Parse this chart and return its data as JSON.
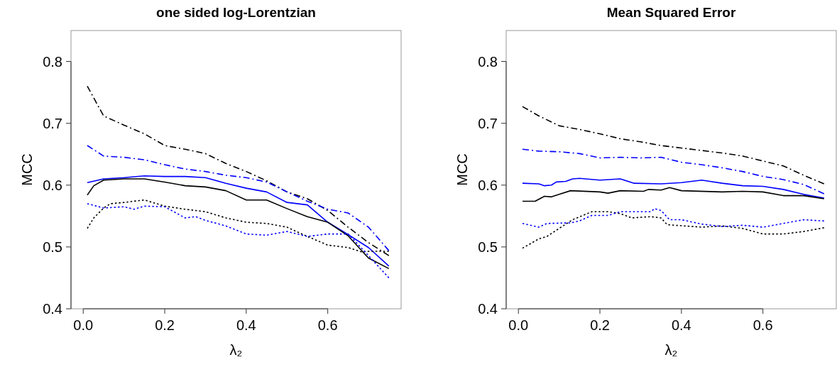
{
  "chart_data": [
    {
      "type": "line",
      "title": "one sided log-Lorentzian",
      "xlabel": "λ₂",
      "ylabel": "MCC",
      "xlim": [
        -0.03,
        0.78
      ],
      "ylim": [
        0.4,
        0.85
      ],
      "xticks": [
        {
          "value": 0,
          "label": "0.0"
        },
        0.2,
        0.4,
        0.6
      ],
      "yticks": [
        0.4,
        0.5,
        0.6,
        0.7,
        0.8
      ],
      "grid": false,
      "series": [
        {
          "color": "#000000",
          "line_style": "dashed",
          "x": [
            0.01,
            0.05,
            0.1,
            0.15,
            0.2,
            0.25,
            0.3,
            0.35,
            0.4,
            0.45,
            0.5,
            0.55,
            0.6,
            0.65,
            0.7,
            0.75
          ],
          "values": [
            0.76,
            0.712,
            0.697,
            0.683,
            0.664,
            0.658,
            0.651,
            0.635,
            0.622,
            0.607,
            0.589,
            0.578,
            0.559,
            0.532,
            0.507,
            0.486
          ]
        },
        {
          "color": "#0000ff",
          "line_style": "dashed",
          "x": [
            0.01,
            0.05,
            0.1,
            0.15,
            0.2,
            0.25,
            0.3,
            0.35,
            0.4,
            0.45,
            0.5,
            0.55,
            0.6,
            0.65,
            0.7,
            0.75
          ],
          "values": [
            0.664,
            0.647,
            0.645,
            0.641,
            0.633,
            0.626,
            0.622,
            0.616,
            0.612,
            0.605,
            0.589,
            0.574,
            0.561,
            0.555,
            0.532,
            0.494
          ]
        },
        {
          "color": "#0000ff",
          "line_style": "solid",
          "x": [
            0.01,
            0.05,
            0.1,
            0.15,
            0.2,
            0.25,
            0.3,
            0.35,
            0.4,
            0.45,
            0.5,
            0.55,
            0.6,
            0.65,
            0.7,
            0.75
          ],
          "values": [
            0.604,
            0.61,
            0.612,
            0.615,
            0.614,
            0.614,
            0.612,
            0.603,
            0.595,
            0.589,
            0.572,
            0.568,
            0.54,
            0.52,
            0.499,
            0.469
          ]
        },
        {
          "color": "#000000",
          "line_style": "solid",
          "x": [
            0.01,
            0.026,
            0.05,
            0.1,
            0.15,
            0.2,
            0.25,
            0.3,
            0.35,
            0.4,
            0.45,
            0.5,
            0.55,
            0.6,
            0.65,
            0.7,
            0.75
          ],
          "values": [
            0.584,
            0.599,
            0.608,
            0.61,
            0.61,
            0.605,
            0.599,
            0.597,
            0.591,
            0.576,
            0.576,
            0.562,
            0.549,
            0.54,
            0.518,
            0.482,
            0.465
          ]
        },
        {
          "color": "#000000",
          "line_style": "dotted",
          "x": [
            0.01,
            0.026,
            0.05,
            0.067,
            0.1,
            0.15,
            0.2,
            0.25,
            0.3,
            0.35,
            0.4,
            0.45,
            0.5,
            0.55,
            0.6,
            0.65,
            0.683,
            0.7,
            0.75
          ],
          "values": [
            0.53,
            0.547,
            0.563,
            0.57,
            0.572,
            0.576,
            0.566,
            0.561,
            0.557,
            0.547,
            0.54,
            0.538,
            0.532,
            0.517,
            0.503,
            0.499,
            0.492,
            0.493,
            0.493
          ]
        },
        {
          "color": "#0000ff",
          "line_style": "dotted",
          "x": [
            0.01,
            0.05,
            0.1,
            0.125,
            0.15,
            0.2,
            0.25,
            0.276,
            0.3,
            0.35,
            0.4,
            0.45,
            0.5,
            0.55,
            0.6,
            0.65,
            0.7,
            0.75
          ],
          "values": [
            0.57,
            0.563,
            0.565,
            0.561,
            0.566,
            0.565,
            0.547,
            0.549,
            0.543,
            0.534,
            0.521,
            0.519,
            0.525,
            0.517,
            0.521,
            0.521,
            0.486,
            0.45
          ]
        }
      ]
    },
    {
      "type": "line",
      "title": "Mean Squared Error",
      "xlabel": "λ₂",
      "ylabel": "MCC",
      "xlim": [
        -0.03,
        0.78
      ],
      "ylim": [
        0.4,
        0.85
      ],
      "xticks": [
        {
          "value": 0,
          "label": "0.0"
        },
        0.2,
        0.4,
        0.6
      ],
      "yticks": [
        0.4,
        0.5,
        0.6,
        0.7,
        0.8
      ],
      "grid": false,
      "series": [
        {
          "color": "#000000",
          "line_style": "dashed",
          "x": [
            0.01,
            0.05,
            0.1,
            0.15,
            0.2,
            0.25,
            0.3,
            0.35,
            0.4,
            0.45,
            0.5,
            0.55,
            0.6,
            0.65,
            0.7,
            0.75
          ],
          "values": [
            0.727,
            0.712,
            0.696,
            0.69,
            0.683,
            0.675,
            0.67,
            0.664,
            0.66,
            0.656,
            0.652,
            0.647,
            0.639,
            0.631,
            0.616,
            0.602
          ]
        },
        {
          "color": "#0000ff",
          "line_style": "dashed",
          "x": [
            0.01,
            0.05,
            0.1,
            0.15,
            0.2,
            0.25,
            0.3,
            0.35,
            0.4,
            0.45,
            0.5,
            0.55,
            0.6,
            0.65,
            0.7,
            0.75
          ],
          "values": [
            0.658,
            0.655,
            0.654,
            0.651,
            0.644,
            0.645,
            0.644,
            0.645,
            0.637,
            0.633,
            0.628,
            0.622,
            0.614,
            0.609,
            0.601,
            0.586
          ]
        },
        {
          "color": "#0000ff",
          "line_style": "solid",
          "x": [
            0.01,
            0.05,
            0.064,
            0.081,
            0.093,
            0.116,
            0.133,
            0.15,
            0.2,
            0.25,
            0.284,
            0.35,
            0.4,
            0.45,
            0.5,
            0.55,
            0.6,
            0.65,
            0.7,
            0.75
          ],
          "values": [
            0.603,
            0.602,
            0.599,
            0.6,
            0.605,
            0.606,
            0.61,
            0.611,
            0.608,
            0.61,
            0.603,
            0.602,
            0.604,
            0.608,
            0.603,
            0.599,
            0.598,
            0.593,
            0.585,
            0.579
          ]
        },
        {
          "color": "#000000",
          "line_style": "solid",
          "x": [
            0.01,
            0.041,
            0.064,
            0.081,
            0.1,
            0.128,
            0.2,
            0.22,
            0.25,
            0.307,
            0.319,
            0.35,
            0.371,
            0.4,
            0.5,
            0.55,
            0.6,
            0.65,
            0.7,
            0.75
          ],
          "values": [
            0.574,
            0.574,
            0.582,
            0.581,
            0.585,
            0.591,
            0.589,
            0.587,
            0.591,
            0.59,
            0.593,
            0.592,
            0.596,
            0.591,
            0.589,
            0.59,
            0.589,
            0.583,
            0.583,
            0.578
          ]
        },
        {
          "color": "#000000",
          "line_style": "dotted",
          "x": [
            0.01,
            0.05,
            0.07,
            0.1,
            0.133,
            0.18,
            0.22,
            0.25,
            0.278,
            0.325,
            0.35,
            0.365,
            0.45,
            0.5,
            0.55,
            0.6,
            0.65,
            0.7,
            0.75
          ],
          "values": [
            0.498,
            0.513,
            0.517,
            0.53,
            0.544,
            0.557,
            0.557,
            0.554,
            0.547,
            0.549,
            0.547,
            0.536,
            0.532,
            0.534,
            0.53,
            0.521,
            0.521,
            0.525,
            0.531
          ]
        },
        {
          "color": "#0000ff",
          "line_style": "dotted",
          "x": [
            0.01,
            0.05,
            0.07,
            0.128,
            0.15,
            0.18,
            0.22,
            0.25,
            0.325,
            0.334,
            0.35,
            0.371,
            0.4,
            0.45,
            0.5,
            0.55,
            0.6,
            0.65,
            0.7,
            0.75
          ],
          "values": [
            0.538,
            0.532,
            0.538,
            0.539,
            0.542,
            0.551,
            0.551,
            0.557,
            0.557,
            0.562,
            0.559,
            0.544,
            0.544,
            0.537,
            0.533,
            0.535,
            0.532,
            0.538,
            0.544,
            0.542
          ]
        }
      ]
    }
  ]
}
